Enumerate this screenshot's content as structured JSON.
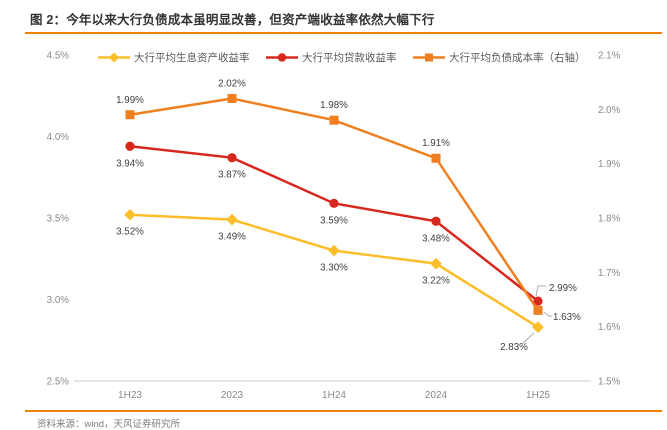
{
  "figure": {
    "title": "图 2：今年以来大行负债成本虽明显改善，但资产端收益率依然大幅下行",
    "source": "资料来源：wind，天风证券研究所",
    "accent_color": "#F18101"
  },
  "chart_data": {
    "type": "line",
    "title": "今年以来大行负债成本虽明显改善，但资产端收益率依然大幅下行",
    "categories": [
      "1H23",
      "2023",
      "1H24",
      "2024",
      "1H25"
    ],
    "series": [
      {
        "name": "大行平均生息资产收益率",
        "axis": "left",
        "color": "#FDBE2B",
        "marker": "diamond",
        "values": [
          3.52,
          3.49,
          3.3,
          3.22,
          2.83
        ],
        "label_position": "below"
      },
      {
        "name": "大行平均贷款收益率",
        "axis": "left",
        "color": "#D7281E",
        "marker": "circle",
        "values": [
          3.94,
          3.87,
          3.59,
          3.48,
          2.99
        ],
        "label_position": "below"
      },
      {
        "name": "大行平均负债成本率（右轴）",
        "axis": "right",
        "color": "#F0801F",
        "marker": "square",
        "values": [
          1.99,
          2.02,
          1.98,
          1.91,
          1.63
        ],
        "label_position": "above"
      }
    ],
    "left_axis": {
      "min": 2.5,
      "max": 4.5,
      "ticks": [
        "4.5%",
        "4.0%",
        "3.5%",
        "3.0%",
        "2.5%"
      ]
    },
    "right_axis": {
      "min": 1.5,
      "max": 2.1,
      "ticks": [
        "2.1%",
        "2.0%",
        "1.9%",
        "1.8%",
        "1.7%",
        "1.6%",
        "1.5%"
      ]
    },
    "legend_position": "top",
    "grid": false,
    "data_labels": true,
    "colors": {
      "axis_line": "#C9C9C9",
      "tick_text": "#8A8A8A",
      "data_label_text": "#3F3F3F",
      "leader_line": "#ADADAD"
    }
  }
}
